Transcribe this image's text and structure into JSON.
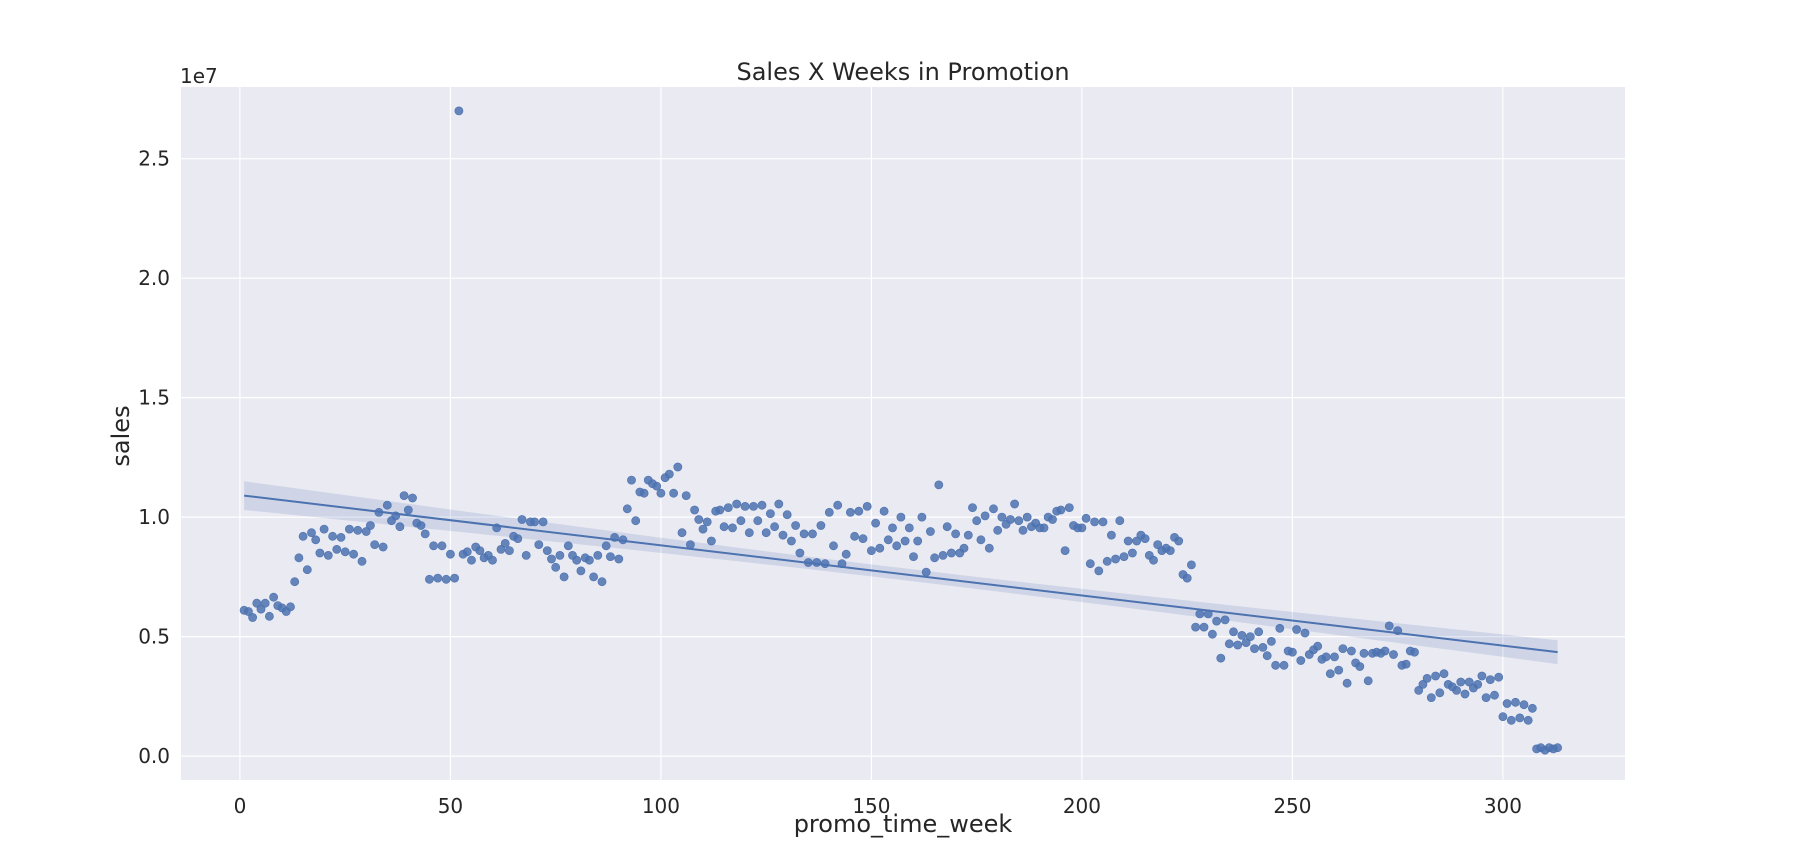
{
  "chart_data": {
    "type": "scatter",
    "title": "Sales X Weeks in Promotion",
    "xlabel": "promo_time_week",
    "ylabel": "sales",
    "y_offset_label": "1e7",
    "xlim": [
      -14,
      329
    ],
    "ylim": [
      -0.1,
      2.8
    ],
    "y_scale_multiplier": 10000000,
    "x_ticks": [
      0,
      50,
      100,
      150,
      200,
      250,
      300
    ],
    "y_ticks": [
      0.0,
      0.5,
      1.0,
      1.5,
      2.0,
      2.5
    ],
    "x_tick_labels": [
      "0",
      "50",
      "100",
      "150",
      "200",
      "250",
      "300"
    ],
    "y_tick_labels": [
      "0.0",
      "0.5",
      "1.0",
      "1.5",
      "2.0",
      "2.5"
    ],
    "grid": true,
    "style": "seaborn-darkgrid",
    "colors": {
      "points": "#4c72b0",
      "line": "#4c72b0",
      "band": "#4c72b0",
      "plot_bg": "#eaeaf2",
      "grid": "#ffffff"
    },
    "regression": {
      "x_start": 1,
      "x_end": 313,
      "y_start": 1.09,
      "y_end": 0.435,
      "ci_half_width_start": 0.06,
      "ci_half_width_mid": 0.025,
      "ci_half_width_end": 0.05
    },
    "points_unit_note": "y values in units of 1e7",
    "points": [
      [
        1,
        0.61
      ],
      [
        2,
        0.605
      ],
      [
        3,
        0.58
      ],
      [
        4,
        0.64
      ],
      [
        5,
        0.615
      ],
      [
        6,
        0.64
      ],
      [
        7,
        0.585
      ],
      [
        8,
        0.665
      ],
      [
        9,
        0.63
      ],
      [
        10,
        0.62
      ],
      [
        11,
        0.605
      ],
      [
        12,
        0.625
      ],
      [
        13,
        0.73
      ],
      [
        14,
        0.83
      ],
      [
        15,
        0.92
      ],
      [
        16,
        0.78
      ],
      [
        17,
        0.935
      ],
      [
        18,
        0.905
      ],
      [
        19,
        0.85
      ],
      [
        20,
        0.95
      ],
      [
        21,
        0.84
      ],
      [
        22,
        0.92
      ],
      [
        23,
        0.865
      ],
      [
        24,
        0.915
      ],
      [
        25,
        0.855
      ],
      [
        26,
        0.95
      ],
      [
        27,
        0.845
      ],
      [
        28,
        0.945
      ],
      [
        29,
        0.815
      ],
      [
        30,
        0.94
      ],
      [
        31,
        0.965
      ],
      [
        32,
        0.885
      ],
      [
        33,
        1.02
      ],
      [
        34,
        0.875
      ],
      [
        35,
        1.05
      ],
      [
        36,
        0.985
      ],
      [
        37,
        1.005
      ],
      [
        38,
        0.96
      ],
      [
        39,
        1.09
      ],
      [
        40,
        1.03
      ],
      [
        41,
        1.08
      ],
      [
        42,
        0.975
      ],
      [
        43,
        0.965
      ],
      [
        44,
        0.93
      ],
      [
        45,
        0.74
      ],
      [
        46,
        0.88
      ],
      [
        47,
        0.745
      ],
      [
        48,
        0.88
      ],
      [
        49,
        0.74
      ],
      [
        50,
        0.845
      ],
      [
        51,
        0.745
      ],
      [
        52,
        2.7
      ],
      [
        53,
        0.845
      ],
      [
        54,
        0.855
      ],
      [
        55,
        0.82
      ],
      [
        56,
        0.875
      ],
      [
        57,
        0.86
      ],
      [
        58,
        0.83
      ],
      [
        59,
        0.84
      ],
      [
        60,
        0.82
      ],
      [
        61,
        0.955
      ],
      [
        62,
        0.865
      ],
      [
        63,
        0.89
      ],
      [
        64,
        0.86
      ],
      [
        65,
        0.92
      ],
      [
        66,
        0.91
      ],
      [
        67,
        0.99
      ],
      [
        68,
        0.84
      ],
      [
        69,
        0.98
      ],
      [
        70,
        0.98
      ],
      [
        71,
        0.885
      ],
      [
        72,
        0.98
      ],
      [
        73,
        0.86
      ],
      [
        74,
        0.825
      ],
      [
        75,
        0.79
      ],
      [
        76,
        0.84
      ],
      [
        77,
        0.75
      ],
      [
        78,
        0.88
      ],
      [
        79,
        0.84
      ],
      [
        80,
        0.82
      ],
      [
        81,
        0.775
      ],
      [
        82,
        0.83
      ],
      [
        83,
        0.82
      ],
      [
        84,
        0.75
      ],
      [
        85,
        0.84
      ],
      [
        86,
        0.73
      ],
      [
        87,
        0.88
      ],
      [
        88,
        0.835
      ],
      [
        89,
        0.915
      ],
      [
        90,
        0.825
      ],
      [
        91,
        0.905
      ],
      [
        92,
        1.035
      ],
      [
        93,
        1.155
      ],
      [
        94,
        0.985
      ],
      [
        95,
        1.105
      ],
      [
        96,
        1.1
      ],
      [
        97,
        1.155
      ],
      [
        98,
        1.14
      ],
      [
        99,
        1.13
      ],
      [
        100,
        1.1
      ],
      [
        101,
        1.165
      ],
      [
        102,
        1.18
      ],
      [
        103,
        1.1
      ],
      [
        104,
        1.21
      ],
      [
        105,
        0.935
      ],
      [
        106,
        1.09
      ],
      [
        107,
        0.885
      ],
      [
        108,
        1.03
      ],
      [
        109,
        0.99
      ],
      [
        110,
        0.95
      ],
      [
        111,
        0.98
      ],
      [
        112,
        0.9
      ],
      [
        113,
        1.025
      ],
      [
        114,
        1.03
      ],
      [
        115,
        0.96
      ],
      [
        116,
        1.04
      ],
      [
        117,
        0.955
      ],
      [
        118,
        1.055
      ],
      [
        119,
        0.985
      ],
      [
        120,
        1.045
      ],
      [
        121,
        0.935
      ],
      [
        122,
        1.045
      ],
      [
        123,
        0.985
      ],
      [
        124,
        1.05
      ],
      [
        125,
        0.935
      ],
      [
        126,
        1.015
      ],
      [
        127,
        0.96
      ],
      [
        128,
        1.055
      ],
      [
        129,
        0.925
      ],
      [
        130,
        1.01
      ],
      [
        131,
        0.9
      ],
      [
        132,
        0.965
      ],
      [
        133,
        0.85
      ],
      [
        134,
        0.93
      ],
      [
        135,
        0.81
      ],
      [
        136,
        0.93
      ],
      [
        137,
        0.81
      ],
      [
        138,
        0.965
      ],
      [
        139,
        0.805
      ],
      [
        140,
        1.02
      ],
      [
        141,
        0.88
      ],
      [
        142,
        1.05
      ],
      [
        143,
        0.805
      ],
      [
        144,
        0.845
      ],
      [
        145,
        1.02
      ],
      [
        146,
        0.92
      ],
      [
        147,
        1.025
      ],
      [
        148,
        0.91
      ],
      [
        149,
        1.045
      ],
      [
        150,
        0.86
      ],
      [
        151,
        0.975
      ],
      [
        152,
        0.87
      ],
      [
        153,
        1.025
      ],
      [
        154,
        0.905
      ],
      [
        155,
        0.955
      ],
      [
        156,
        0.88
      ],
      [
        157,
        1.0
      ],
      [
        158,
        0.9
      ],
      [
        159,
        0.955
      ],
      [
        160,
        0.835
      ],
      [
        161,
        0.9
      ],
      [
        162,
        1.0
      ],
      [
        163,
        0.77
      ],
      [
        164,
        0.94
      ],
      [
        165,
        0.83
      ],
      [
        166,
        1.135
      ],
      [
        167,
        0.84
      ],
      [
        168,
        0.96
      ],
      [
        169,
        0.85
      ],
      [
        170,
        0.93
      ],
      [
        171,
        0.85
      ],
      [
        172,
        0.87
      ],
      [
        173,
        0.925
      ],
      [
        174,
        1.04
      ],
      [
        175,
        0.985
      ],
      [
        176,
        0.905
      ],
      [
        177,
        1.005
      ],
      [
        178,
        0.87
      ],
      [
        179,
        1.035
      ],
      [
        180,
        0.945
      ],
      [
        181,
        1.0
      ],
      [
        182,
        0.97
      ],
      [
        183,
        0.99
      ],
      [
        184,
        1.055
      ],
      [
        185,
        0.985
      ],
      [
        186,
        0.945
      ],
      [
        187,
        1.0
      ],
      [
        188,
        0.96
      ],
      [
        189,
        0.975
      ],
      [
        190,
        0.955
      ],
      [
        191,
        0.955
      ],
      [
        192,
        1.0
      ],
      [
        193,
        0.99
      ],
      [
        194,
        1.025
      ],
      [
        195,
        1.03
      ],
      [
        196,
        0.86
      ],
      [
        197,
        1.04
      ],
      [
        198,
        0.965
      ],
      [
        199,
        0.955
      ],
      [
        200,
        0.955
      ],
      [
        201,
        0.995
      ],
      [
        202,
        0.805
      ],
      [
        203,
        0.98
      ],
      [
        204,
        0.775
      ],
      [
        205,
        0.98
      ],
      [
        206,
        0.815
      ],
      [
        207,
        0.925
      ],
      [
        208,
        0.825
      ],
      [
        209,
        0.985
      ],
      [
        210,
        0.835
      ],
      [
        211,
        0.9
      ],
      [
        212,
        0.85
      ],
      [
        213,
        0.9
      ],
      [
        214,
        0.925
      ],
      [
        215,
        0.91
      ],
      [
        216,
        0.84
      ],
      [
        217,
        0.82
      ],
      [
        218,
        0.885
      ],
      [
        219,
        0.86
      ],
      [
        220,
        0.87
      ],
      [
        221,
        0.86
      ],
      [
        222,
        0.915
      ],
      [
        223,
        0.9
      ],
      [
        224,
        0.76
      ],
      [
        225,
        0.745
      ],
      [
        226,
        0.8
      ],
      [
        227,
        0.54
      ],
      [
        228,
        0.595
      ],
      [
        229,
        0.54
      ],
      [
        230,
        0.595
      ],
      [
        231,
        0.51
      ],
      [
        232,
        0.565
      ],
      [
        233,
        0.41
      ],
      [
        234,
        0.57
      ],
      [
        235,
        0.47
      ],
      [
        236,
        0.52
      ],
      [
        237,
        0.465
      ],
      [
        238,
        0.505
      ],
      [
        239,
        0.475
      ],
      [
        240,
        0.5
      ],
      [
        241,
        0.45
      ],
      [
        242,
        0.52
      ],
      [
        243,
        0.455
      ],
      [
        244,
        0.42
      ],
      [
        245,
        0.48
      ],
      [
        246,
        0.38
      ],
      [
        247,
        0.535
      ],
      [
        248,
        0.38
      ],
      [
        249,
        0.44
      ],
      [
        250,
        0.435
      ],
      [
        251,
        0.53
      ],
      [
        252,
        0.4
      ],
      [
        253,
        0.515
      ],
      [
        254,
        0.425
      ],
      [
        255,
        0.445
      ],
      [
        256,
        0.46
      ],
      [
        257,
        0.405
      ],
      [
        258,
        0.415
      ],
      [
        259,
        0.345
      ],
      [
        260,
        0.415
      ],
      [
        261,
        0.36
      ],
      [
        262,
        0.45
      ],
      [
        263,
        0.305
      ],
      [
        264,
        0.44
      ],
      [
        265,
        0.39
      ],
      [
        266,
        0.375
      ],
      [
        267,
        0.43
      ],
      [
        268,
        0.315
      ],
      [
        269,
        0.43
      ],
      [
        270,
        0.435
      ],
      [
        271,
        0.43
      ],
      [
        272,
        0.44
      ],
      [
        273,
        0.545
      ],
      [
        274,
        0.425
      ],
      [
        275,
        0.525
      ],
      [
        276,
        0.38
      ],
      [
        277,
        0.385
      ],
      [
        278,
        0.44
      ],
      [
        279,
        0.435
      ],
      [
        280,
        0.275
      ],
      [
        281,
        0.3
      ],
      [
        282,
        0.325
      ],
      [
        283,
        0.245
      ],
      [
        284,
        0.335
      ],
      [
        285,
        0.265
      ],
      [
        286,
        0.345
      ],
      [
        287,
        0.3
      ],
      [
        288,
        0.29
      ],
      [
        289,
        0.275
      ],
      [
        290,
        0.31
      ],
      [
        291,
        0.26
      ],
      [
        292,
        0.31
      ],
      [
        293,
        0.285
      ],
      [
        294,
        0.3
      ],
      [
        295,
        0.335
      ],
      [
        296,
        0.245
      ],
      [
        297,
        0.32
      ],
      [
        298,
        0.255
      ],
      [
        299,
        0.33
      ],
      [
        300,
        0.165
      ],
      [
        301,
        0.22
      ],
      [
        302,
        0.15
      ],
      [
        303,
        0.225
      ],
      [
        304,
        0.16
      ],
      [
        305,
        0.215
      ],
      [
        306,
        0.15
      ],
      [
        307,
        0.2
      ],
      [
        308,
        0.03
      ],
      [
        309,
        0.035
      ],
      [
        310,
        0.025
      ],
      [
        311,
        0.035
      ],
      [
        312,
        0.03
      ],
      [
        313,
        0.035
      ]
    ]
  }
}
